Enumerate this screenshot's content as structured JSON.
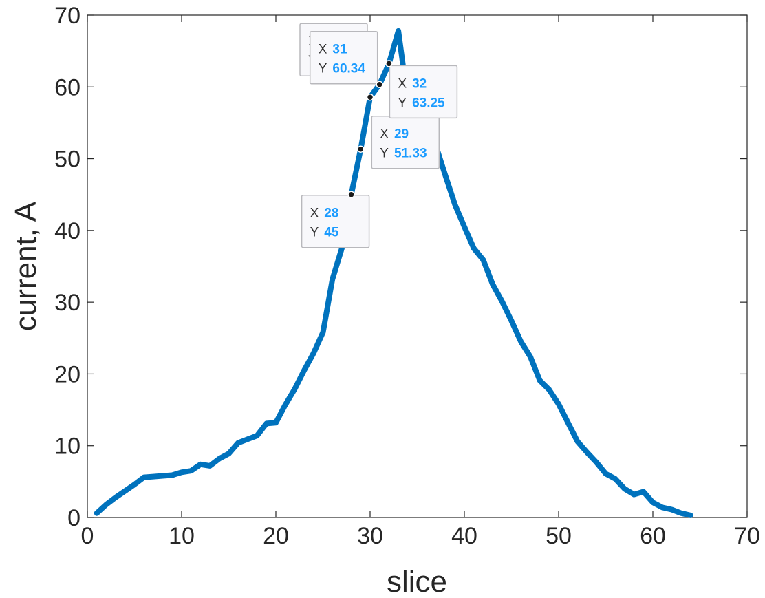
{
  "chart_data": {
    "type": "line",
    "xlabel": "slice",
    "ylabel": "current, A",
    "xlim": [
      0,
      70
    ],
    "ylim": [
      0,
      70
    ],
    "xticks": [
      0,
      10,
      20,
      30,
      40,
      50,
      60,
      70
    ],
    "yticks": [
      0,
      10,
      20,
      30,
      40,
      50,
      60,
      70
    ],
    "grid": false,
    "line_color": "#0072BD",
    "series": [
      {
        "x": [
          1,
          2,
          3,
          4,
          5,
          6,
          7,
          8,
          9,
          10,
          11,
          12,
          13,
          14,
          15,
          16,
          17,
          18,
          19,
          20,
          21,
          22,
          23,
          24,
          25,
          26,
          27,
          28,
          29,
          30,
          31,
          32,
          33,
          34,
          35,
          36,
          37,
          38,
          39,
          40,
          41,
          42,
          43,
          44,
          45,
          46,
          47,
          48,
          49,
          50,
          51,
          52,
          53,
          54,
          55,
          56,
          57,
          58,
          59,
          60,
          61,
          62,
          63,
          64
        ],
        "y": [
          0.6,
          1.8,
          2.8,
          3.7,
          4.6,
          5.6,
          5.7,
          5.8,
          5.9,
          6.3,
          6.5,
          7.4,
          7.2,
          8.2,
          8.9,
          10.4,
          10.9,
          11.4,
          13.1,
          13.2,
          15.7,
          17.9,
          20.5,
          22.9,
          25.8,
          33.2,
          37.5,
          45,
          51.33,
          58.57,
          60.34,
          63.25,
          67.8,
          58,
          50.5,
          50.2,
          51.7,
          47.6,
          43.6,
          40.5,
          37.5,
          35.9,
          32.5,
          30.1,
          27.4,
          24.5,
          22.4,
          19.1,
          17.8,
          15.8,
          13.2,
          10.6,
          9.1,
          7.7,
          6.1,
          5.4,
          4,
          3.2,
          3.6,
          2.1,
          1.4,
          1.1,
          0.6,
          0.3
        ]
      }
    ],
    "datatips": [
      {
        "x_key": "X",
        "x": "28",
        "y_key": "Y",
        "y": "45"
      },
      {
        "x_key": "X",
        "x": "29",
        "y_key": "Y",
        "y": "51.33"
      },
      {
        "x_key": "X",
        "x": "30",
        "y_key": "Y",
        "y": "58.57"
      },
      {
        "x_key": "X",
        "x": "31",
        "y_key": "Y",
        "y": "60.34"
      },
      {
        "x_key": "X",
        "x": "32",
        "y_key": "Y",
        "y": "63.25"
      }
    ]
  }
}
